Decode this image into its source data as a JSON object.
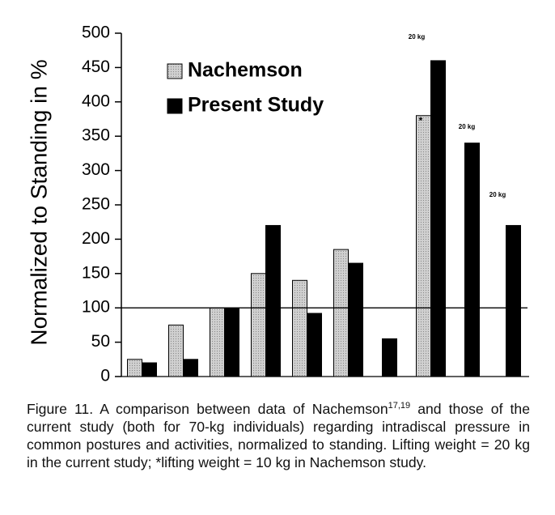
{
  "chart_data": {
    "type": "bar",
    "y_label": "Normalized to Standing in %",
    "categories": [
      null,
      null,
      null,
      null,
      null,
      null,
      null,
      null,
      null,
      null
    ],
    "series": [
      {
        "name": "Nachemson",
        "color": "#c8c8c8",
        "values": [
          25,
          75,
          100,
          150,
          140,
          185,
          null,
          380,
          null,
          null
        ]
      },
      {
        "name": "Present Study",
        "color": "#000000",
        "values": [
          20,
          25,
          100,
          220,
          92,
          165,
          55,
          460,
          340,
          220
        ]
      }
    ],
    "ylim": [
      0,
      500
    ],
    "yticks": [
      0,
      50,
      100,
      150,
      200,
      250,
      300,
      350,
      400,
      450,
      500
    ],
    "reference_line": 100,
    "annotations": [
      "20 kg",
      "20 kg",
      "20 kg",
      "*"
    ],
    "legend": "top-left"
  },
  "caption": {
    "text_before": "Figure 11. A comparison between data of Nachemson",
    "superscript": "17,19",
    "text_after": " and those of the current study (both for 70-kg individuals) regarding intradiscal pressure in common postures and activities, normalized to standing. Lifting weight = 20 kg in the current study; *lifting weight = 10 kg in Nachemson study."
  }
}
